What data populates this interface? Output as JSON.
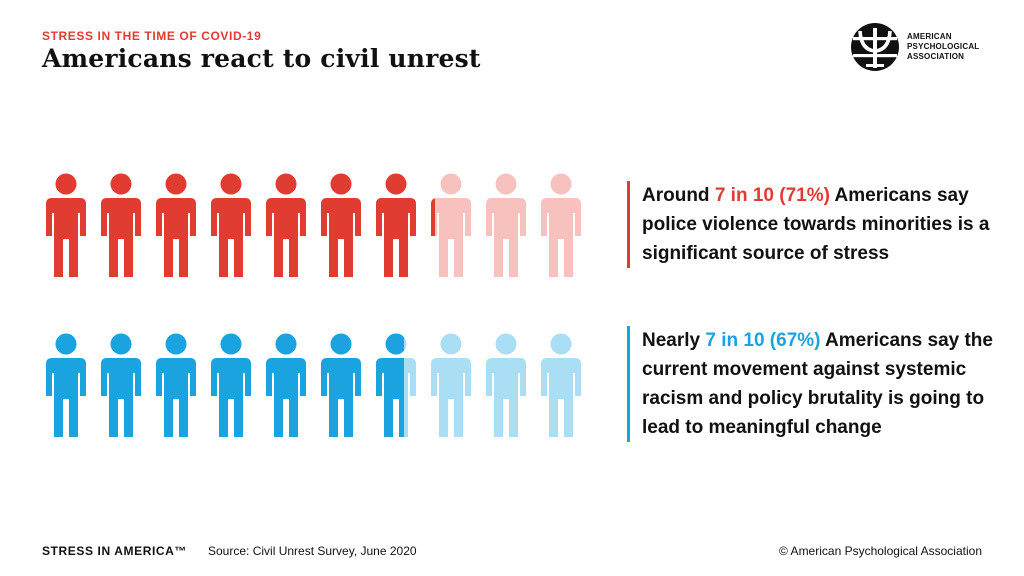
{
  "header": {
    "kicker": "STRESS IN THE TIME OF COVID-19",
    "title": "Americans react to civil unrest"
  },
  "logo": {
    "line1": "AMERICAN",
    "line2": "PSYCHOLOGICAL",
    "line3": "ASSOCIATION"
  },
  "colors": {
    "red": "#e03c31",
    "red_light": "#f7c2bd",
    "blue": "#1ba3e0",
    "blue_light": "#a9def5"
  },
  "chart_data": {
    "type": "pictograph",
    "icons_per_row": 10,
    "series": [
      {
        "name": "police violence towards minorities is a significant source of stress",
        "value_percent": 71,
        "filled_icons": 7.1,
        "color": "#e03c31",
        "light_color": "#f7c2bd"
      },
      {
        "name": "current movement will lead to meaningful change",
        "value_percent": 67,
        "filled_icons": 6.7,
        "color": "#1ba3e0",
        "light_color": "#a9def5"
      }
    ]
  },
  "stats": {
    "red": {
      "pre": "Around ",
      "highlight": "7 in 10 (71%)",
      "post": " Americans say police violence towards minorities is a significant source of stress"
    },
    "blue": {
      "pre": "Nearly ",
      "highlight": "7 in 10 (67%)",
      "post": " Americans say the current movement against systemic racism and policy brutality is going to lead to meaningful change"
    }
  },
  "footer": {
    "brand": "STRESS IN AMERICA™",
    "source": "Source: Civil Unrest Survey, June 2020",
    "copyright": "© American Psychological Association"
  }
}
